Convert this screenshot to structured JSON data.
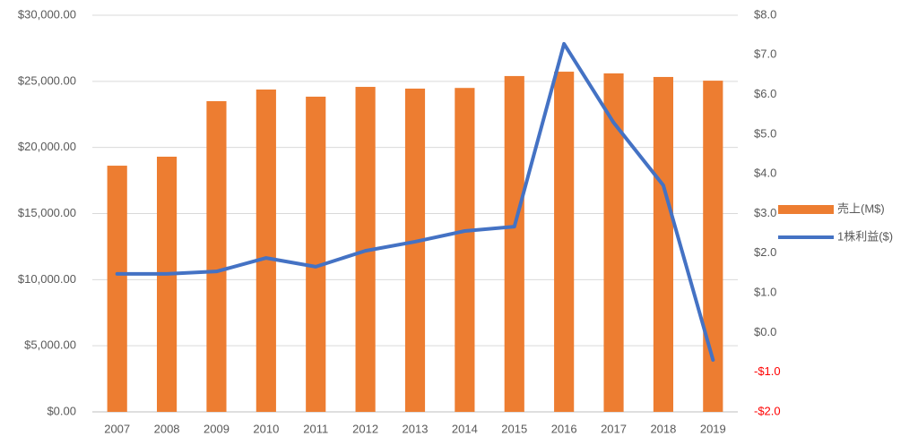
{
  "chart_data": {
    "type": "bar_line",
    "categories": [
      "2007",
      "2008",
      "2009",
      "2010",
      "2011",
      "2012",
      "2013",
      "2014",
      "2015",
      "2016",
      "2017",
      "2018",
      "2019"
    ],
    "series": [
      {
        "name": "売上(M$)",
        "type": "bar",
        "color": "#ed7d31",
        "axis": "y",
        "values": [
          18620,
          19300,
          23500,
          24380,
          23840,
          24580,
          24450,
          24500,
          25400,
          25730,
          25600,
          25330,
          25050
        ]
      },
      {
        "name": "1株利益($)",
        "type": "line",
        "color": "#4472c4",
        "axis": "y2",
        "values": [
          1.48,
          1.48,
          1.54,
          1.88,
          1.66,
          2.06,
          2.29,
          2.56,
          2.67,
          7.28,
          5.29,
          3.71,
          -0.69
        ]
      }
    ],
    "ylim": [
      0,
      30000
    ],
    "yticks": [
      {
        "value": 0,
        "label": "$0.00"
      },
      {
        "value": 5000,
        "label": "$5,000.00"
      },
      {
        "value": 10000,
        "label": "$10,000.00"
      },
      {
        "value": 15000,
        "label": "$15,000.00"
      },
      {
        "value": 20000,
        "label": "$20,000.00"
      },
      {
        "value": 25000,
        "label": "$25,000.00"
      },
      {
        "value": 30000,
        "label": "$30,000.00"
      }
    ],
    "y2lim": [
      -2,
      8
    ],
    "y2ticks": [
      {
        "value": -2,
        "label": "-$2.0"
      },
      {
        "value": -1,
        "label": "-$1.0"
      },
      {
        "value": 0,
        "label": "$0.0"
      },
      {
        "value": 1,
        "label": "$1.0"
      },
      {
        "value": 2,
        "label": "$2.0"
      },
      {
        "value": 3,
        "label": "$3.0"
      },
      {
        "value": 4,
        "label": "$4.0"
      },
      {
        "value": 5,
        "label": "$5.0"
      },
      {
        "value": 6,
        "label": "$6.0"
      },
      {
        "value": 7,
        "label": "$7.0"
      },
      {
        "value": 8,
        "label": "$8.0"
      }
    ],
    "negative_tick_color": "#ff0000",
    "grid": true,
    "legend": "right"
  }
}
